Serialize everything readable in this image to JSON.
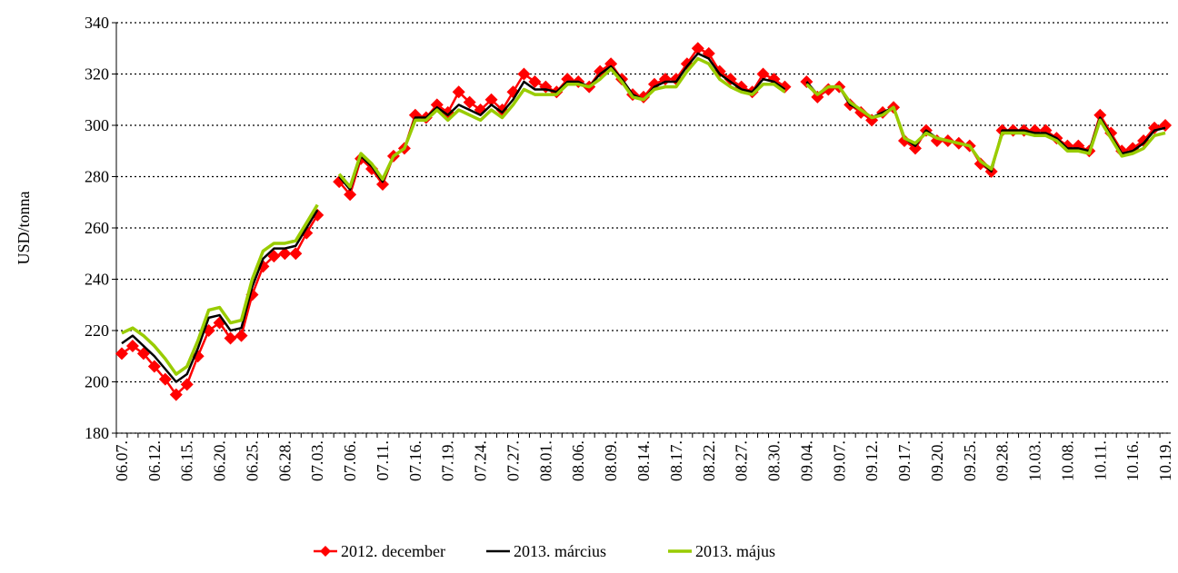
{
  "chart_data": {
    "type": "line",
    "y_label": "USD/tonna",
    "categories": [
      "06.07.",
      null,
      null,
      "06.12.",
      null,
      null,
      "06.15.",
      null,
      null,
      "06.20.",
      null,
      null,
      "06.25.",
      null,
      null,
      "06.28.",
      null,
      null,
      "07.03.",
      null,
      null,
      "07.06.",
      null,
      null,
      "07.11.",
      null,
      null,
      "07.16.",
      null,
      null,
      "07.19.",
      null,
      null,
      "07.24.",
      null,
      null,
      "07.27.",
      null,
      null,
      "08.01.",
      null,
      null,
      "08.06.",
      null,
      null,
      "08.09.",
      null,
      null,
      "08.14.",
      null,
      null,
      "08.17.",
      null,
      null,
      "08.22.",
      null,
      null,
      "08.27.",
      null,
      null,
      "08.30.",
      null,
      null,
      "09.04.",
      null,
      null,
      "09.07.",
      null,
      null,
      "09.12.",
      null,
      null,
      "09.17.",
      null,
      null,
      "09.20.",
      null,
      null,
      "09.25.",
      null,
      null,
      "09.28.",
      null,
      null,
      "10.03.",
      null,
      null,
      "10.08.",
      null,
      null,
      "10.11.",
      null,
      null,
      "10.16.",
      null,
      null,
      "10.19."
    ],
    "series": [
      {
        "name": "2012. december",
        "color": "#ff0000",
        "marker": "diamond",
        "values": [
          211,
          214,
          211,
          206,
          201,
          195,
          199,
          210,
          220,
          223,
          217,
          218,
          234,
          245,
          249,
          250,
          250,
          258,
          265,
          null,
          278,
          273,
          287,
          283,
          277,
          288,
          291,
          304,
          303,
          308,
          305,
          313,
          309,
          306,
          310,
          306,
          313,
          320,
          317,
          315,
          313,
          318,
          317,
          315,
          321,
          324,
          318,
          312,
          311,
          316,
          318,
          318,
          324,
          330,
          328,
          321,
          318,
          315,
          313,
          320,
          318,
          315,
          null,
          317,
          311,
          314,
          315,
          308,
          305,
          302,
          305,
          307,
          294,
          291,
          298,
          294,
          294,
          293,
          292,
          285,
          282,
          298,
          298,
          298,
          298,
          298,
          295,
          292,
          292,
          290,
          304,
          297,
          290,
          291,
          294,
          299,
          300
        ]
      },
      {
        "name": "2013. március",
        "color": "#000000",
        "values": [
          215,
          218,
          214,
          210,
          205,
          200,
          203,
          213,
          225,
          226,
          220,
          221,
          237,
          248,
          252,
          252,
          253,
          260,
          267,
          null,
          280,
          275,
          288,
          284,
          278,
          288,
          291,
          303,
          303,
          307,
          304,
          308,
          306,
          304,
          308,
          305,
          310,
          317,
          314,
          314,
          313,
          317,
          317,
          315,
          320,
          323,
          318,
          312,
          310,
          315,
          317,
          317,
          323,
          328,
          326,
          320,
          317,
          314,
          313,
          318,
          317,
          314,
          null,
          317,
          312,
          315,
          315,
          308,
          306,
          303,
          305,
          307,
          295,
          292,
          298,
          295,
          294,
          293,
          292,
          286,
          282,
          298,
          298,
          298,
          297,
          297,
          295,
          291,
          291,
          290,
          303,
          296,
          289,
          290,
          293,
          298,
          299
        ]
      },
      {
        "name": "2013. május",
        "color": "#99cc00",
        "values": [
          219,
          221,
          218,
          214,
          209,
          203,
          206,
          216,
          228,
          229,
          223,
          224,
          240,
          251,
          254,
          254,
          255,
          262,
          269,
          null,
          281,
          276,
          289,
          285,
          279,
          288,
          291,
          302,
          302,
          306,
          302,
          306,
          304,
          302,
          306,
          303,
          308,
          314,
          312,
          312,
          312,
          316,
          316,
          315,
          318,
          322,
          317,
          311,
          310,
          314,
          315,
          315,
          321,
          326,
          324,
          318,
          315,
          313,
          312,
          316,
          316,
          313,
          null,
          316,
          312,
          315,
          315,
          309,
          306,
          303,
          304,
          307,
          295,
          293,
          297,
          295,
          294,
          293,
          292,
          286,
          283,
          297,
          297,
          297,
          296,
          296,
          294,
          290,
          290,
          289,
          302,
          295,
          288,
          289,
          291,
          296,
          297
        ]
      }
    ],
    "ylim": [
      180,
      340
    ],
    "yticks": [
      180,
      200,
      220,
      240,
      260,
      280,
      300,
      320,
      340
    ],
    "grid": true
  }
}
